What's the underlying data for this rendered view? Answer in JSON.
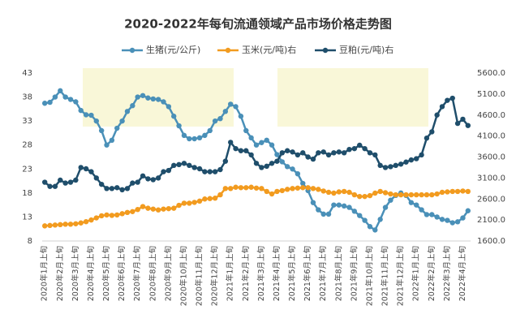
{
  "chart_data": {
    "type": "line",
    "title": "2020-2022年每旬流通领域产品市场价格走势图",
    "categories": [
      "2020年1月上旬",
      null,
      null,
      "2020年2月上旬",
      null,
      null,
      "2020年3月上旬",
      null,
      null,
      "2020年4月上旬",
      null,
      null,
      "2020年5月上旬",
      null,
      null,
      "2020年6月上旬",
      null,
      null,
      "2020年7月上旬",
      null,
      null,
      "2020年8月上旬",
      null,
      null,
      "2020年9月上旬",
      null,
      null,
      "2020年10月上旬",
      null,
      null,
      "2020年11月上旬",
      null,
      null,
      "2020年12月上旬",
      null,
      null,
      "2021年1月上旬",
      null,
      null,
      "2021年2月上旬",
      null,
      null,
      "2021年3月上旬",
      null,
      null,
      "2021年4月上旬",
      null,
      null,
      "2021年5月上旬",
      null,
      null,
      "2021年6月上旬",
      null,
      null,
      "2021年7月上旬",
      null,
      null,
      "2021年8月上旬",
      null,
      null,
      "2021年9月上旬",
      null,
      null,
      "2021年10月上旬",
      null,
      null,
      "2021年11月上旬",
      null,
      null,
      "2021年12月上旬",
      null,
      null,
      "2022年1月上旬",
      null,
      null,
      "2022年2月上旬",
      null,
      null,
      "2022年3月上旬",
      null,
      null,
      "2022年4月上旬",
      null
    ],
    "series": [
      {
        "name": "生猪(元/公斤)",
        "color": "#4a90b8",
        "values": [
          36.7,
          36.9,
          38,
          39.3,
          38,
          37.5,
          37,
          35.2,
          34.3,
          34.2,
          33,
          31,
          28,
          29,
          31.5,
          33,
          35,
          36.2,
          38,
          38.3,
          37.8,
          37.6,
          37.5,
          37,
          36,
          34,
          32,
          30,
          29.3,
          29.3,
          29.5,
          30,
          31,
          33,
          33.5,
          35,
          36.5,
          36,
          34,
          31,
          29.5,
          28,
          28.5,
          29,
          28,
          26,
          24.5,
          23.5,
          23,
          22,
          20,
          18.5,
          16,
          14.5,
          13.6,
          13.6,
          15.5,
          15.5,
          15.3,
          15,
          14.2,
          13.3,
          12.3,
          11,
          10.3,
          12.5,
          15,
          16.5,
          17.5,
          18,
          17.5,
          16,
          15.5,
          14.5,
          13.5,
          13.5,
          13,
          12.5,
          12.3,
          11.8,
          12,
          12.8,
          14.3
        ]
      },
      {
        "name": "玉米(元/吨)右",
        "color": "#f29b1f",
        "axis": "y2",
        "values": [
          1960,
          1970,
          1980,
          1990,
          2000,
          2000,
          2010,
          2030,
          2060,
          2100,
          2150,
          2200,
          2220,
          2210,
          2220,
          2250,
          2280,
          2300,
          2350,
          2420,
          2380,
          2360,
          2340,
          2360,
          2370,
          2380,
          2450,
          2500,
          2500,
          2520,
          2550,
          2600,
          2610,
          2620,
          2700,
          2850,
          2850,
          2880,
          2870,
          2870,
          2880,
          2860,
          2850,
          2780,
          2720,
          2780,
          2800,
          2830,
          2850,
          2860,
          2870,
          2870,
          2850,
          2830,
          2790,
          2760,
          2740,
          2770,
          2780,
          2760,
          2700,
          2660,
          2660,
          2680,
          2740,
          2780,
          2750,
          2720,
          2700,
          2700,
          2700,
          2700,
          2700,
          2700,
          2700,
          2700,
          2720,
          2760,
          2770,
          2780,
          2780,
          2790,
          2780
        ]
      },
      {
        "name": "豆粕(元/吨)右",
        "color": "#1f4e6b",
        "axis": "y2",
        "values": [
          3000,
          2900,
          2900,
          3050,
          2980,
          3000,
          3050,
          3350,
          3320,
          3250,
          3100,
          2950,
          2850,
          2850,
          2870,
          2820,
          2850,
          2980,
          3000,
          3150,
          3080,
          3060,
          3100,
          3250,
          3280,
          3400,
          3420,
          3450,
          3400,
          3350,
          3320,
          3250,
          3250,
          3250,
          3300,
          3500,
          3950,
          3800,
          3750,
          3750,
          3650,
          3450,
          3350,
          3380,
          3450,
          3500,
          3700,
          3750,
          3720,
          3650,
          3700,
          3600,
          3550,
          3700,
          3720,
          3650,
          3700,
          3720,
          3700,
          3780,
          3800,
          3880,
          3800,
          3700,
          3650,
          3400,
          3350,
          3370,
          3400,
          3430,
          3480,
          3530,
          3560,
          3650,
          4050,
          4200,
          4600,
          4800,
          4950,
          5000,
          4400,
          4500,
          4350
        ]
      }
    ],
    "ylim": [
      8,
      43
    ],
    "yticks": [
      8,
      13,
      18,
      23,
      28,
      33,
      38,
      43
    ],
    "y2lim": [
      1600,
      5600
    ],
    "y2ticks": [
      {
        "value": 1600,
        "label": "1600.0"
      },
      {
        "value": 2100,
        "label": "2100.0"
      },
      {
        "value": 2600,
        "label": "2600.0"
      },
      {
        "value": 3100,
        "label": "3100.0"
      },
      {
        "value": 3600,
        "label": "3600.0"
      },
      {
        "value": 4100,
        "label": "4100.0"
      },
      {
        "value": 4600,
        "label": "4600.0"
      },
      {
        "value": 5100,
        "label": "5100.0"
      },
      {
        "value": 5600,
        "label": "5600.0"
      }
    ],
    "grid": false,
    "legend": "top"
  }
}
